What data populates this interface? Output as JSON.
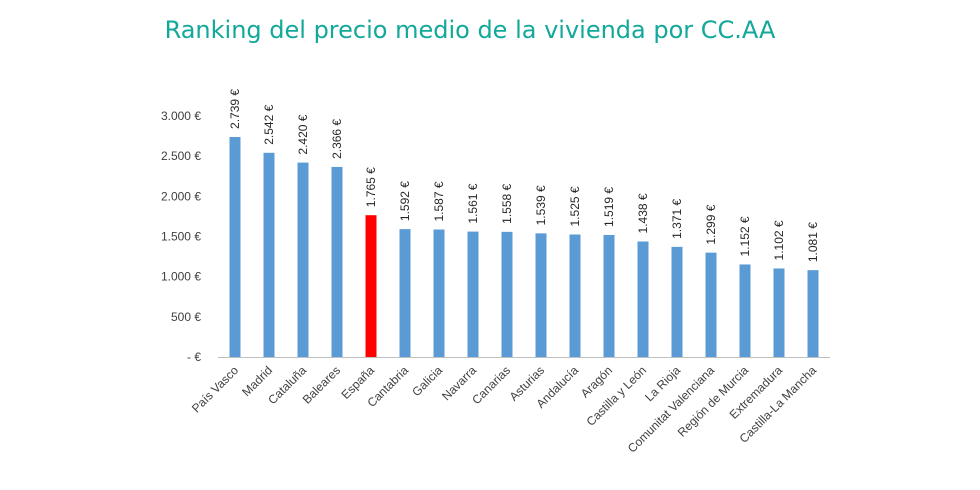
{
  "colors": {
    "title": "#12a89a",
    "bar": "#5b9bd5",
    "highlight": "#ff0000",
    "axis": "#bfbfbf"
  },
  "chart_data": {
    "type": "bar",
    "title": "Ranking del precio medio de la vivienda por CC.AA",
    "xlabel": "",
    "ylabel": "",
    "ylim": [
      0,
      3000
    ],
    "yticks": [
      {
        "value": 0,
        "label": "-   €"
      },
      {
        "value": 500,
        "label": "500 €"
      },
      {
        "value": 1000,
        "label": "1.000 €"
      },
      {
        "value": 1500,
        "label": "1.500 €"
      },
      {
        "value": 2000,
        "label": "2.000 €"
      },
      {
        "value": 2500,
        "label": "2.500 €"
      },
      {
        "value": 3000,
        "label": "3.000 €"
      }
    ],
    "grid": false,
    "categories": [
      "País Vasco",
      "Madrid",
      "Cataluña",
      "Baleares",
      "España",
      "Cantabria",
      "Galicia",
      "Navarra",
      "Canarias",
      "Asturias",
      "Andalucía",
      "Aragón",
      "Castilla y León",
      "La Rioja",
      "Comunitat Valenciana",
      "Región de Murcia",
      "Extremadura",
      "Castilla-La Mancha"
    ],
    "values": [
      2739,
      2542,
      2420,
      2366,
      1765,
      1592,
      1587,
      1561,
      1558,
      1539,
      1525,
      1519,
      1438,
      1371,
      1299,
      1152,
      1102,
      1081
    ],
    "value_labels": [
      "2.739 €",
      "2.542 €",
      "2.420 €",
      "2.366 €",
      "1.765 €",
      "1.592 €",
      "1.587 €",
      "1.561 €",
      "1.558 €",
      "1.539 €",
      "1.525 €",
      "1.519 €",
      "1.438 €",
      "1.371 €",
      "1.299 €",
      "1.152 €",
      "1.102 €",
      "1.081 €"
    ],
    "highlight_category": "España"
  }
}
